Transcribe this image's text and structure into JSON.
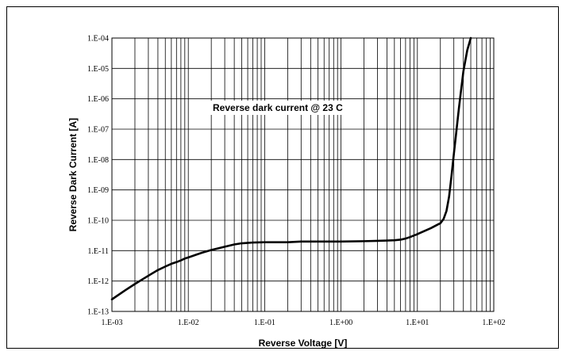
{
  "chart_data": {
    "type": "line",
    "title": "",
    "xlabel": "Reverse Voltage [V]",
    "ylabel": "Reverse Dark Current [A]",
    "xscale": "log",
    "yscale": "log",
    "xlim": [
      0.001,
      100
    ],
    "ylim": [
      1e-13,
      0.0001
    ],
    "grid": true,
    "x_tick_labels": [
      "1.E-03",
      "1.E-02",
      "1.E-01",
      "1.E+00",
      "1.E+01",
      "1.E+02"
    ],
    "y_tick_labels": [
      "1.E-13",
      "1.E-12",
      "1.E-11",
      "1.E-10",
      "1.E-09",
      "1.E-08",
      "1.E-07",
      "1.E-06",
      "1.E-05",
      "1.E-04"
    ],
    "annotations": [
      "Reverse dark current @ 23 C"
    ],
    "series": [
      {
        "name": "",
        "color": "#000000",
        "x": [
          0.001,
          0.0015,
          0.002,
          0.003,
          0.004,
          0.005,
          0.006,
          0.007,
          0.008,
          0.009,
          0.01,
          0.015,
          0.02,
          0.03,
          0.04,
          0.05,
          0.07,
          0.1,
          0.2,
          0.3,
          0.5,
          1,
          2,
          3,
          4,
          5,
          6,
          7,
          8,
          10,
          12,
          15,
          18,
          20,
          22,
          24,
          26,
          28,
          30,
          35,
          40,
          45,
          50
        ],
        "y": [
          2.5e-13,
          5e-13,
          8e-13,
          1.5e-12,
          2.3e-12,
          3e-12,
          3.7e-12,
          4.2e-12,
          4.8e-12,
          5.5e-12,
          6e-12,
          8.5e-12,
          1.05e-11,
          1.35e-11,
          1.6e-11,
          1.75e-11,
          1.85e-11,
          1.9e-11,
          1.9e-11,
          2e-11,
          2e-11,
          2e-11,
          2.05e-11,
          2.1e-11,
          2.15e-11,
          2.2e-11,
          2.3e-11,
          2.5e-11,
          2.8e-11,
          3.5e-11,
          4.3e-11,
          5.5e-11,
          7e-11,
          8e-11,
          1.1e-10,
          2e-10,
          6e-10,
          3e-09,
          1.5e-08,
          5e-07,
          8e-06,
          4e-05,
          0.0001
        ]
      }
    ]
  }
}
